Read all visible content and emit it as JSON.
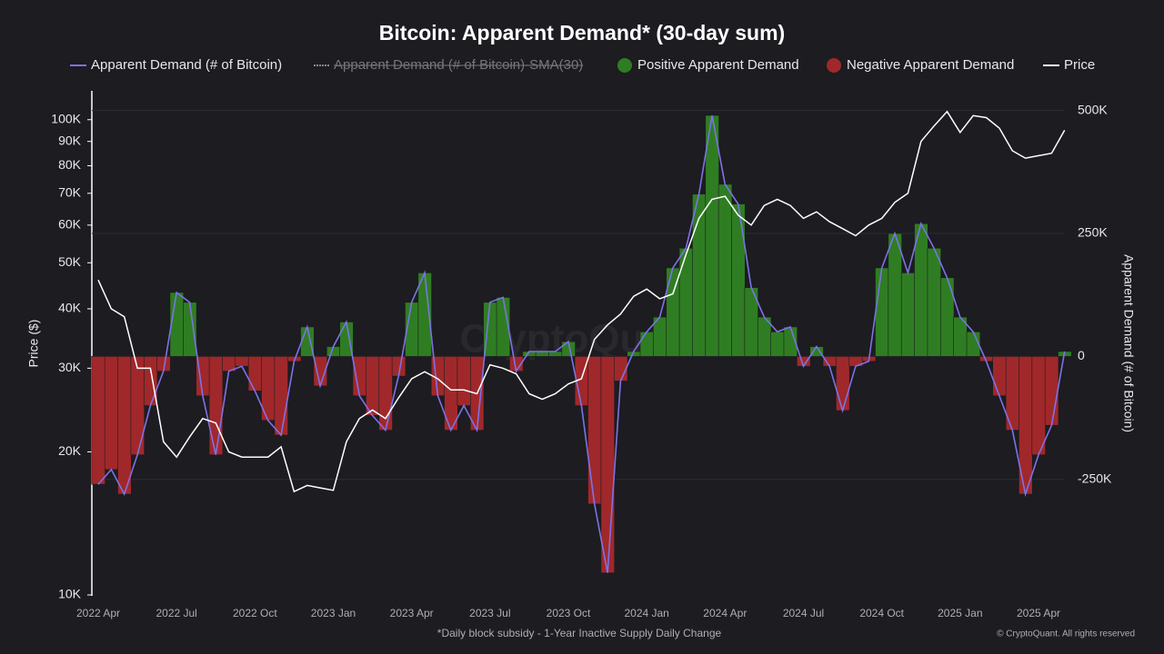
{
  "chart_data": {
    "type": "bar-line",
    "title": "Bitcoin: Apparent Demand* (30-day sum)",
    "footnote": "*Daily block subsidy - 1-Year Inactive Supply Daily Change",
    "copyright": "© CryptoQuant. All rights reserved",
    "watermark": "CryptoQuant",
    "y_label": "Price ($)",
    "y2_label": "Apparent Demand (# of Bitcoin)",
    "y_scale": "log",
    "grid": true,
    "categories": [
      "2022 Apr",
      null,
      null,
      null,
      null,
      null,
      "2022 Jul",
      null,
      null,
      null,
      null,
      null,
      "2022 Oct",
      null,
      null,
      null,
      null,
      null,
      "2023 Jan",
      null,
      null,
      null,
      null,
      null,
      "2023 Apr",
      null,
      null,
      null,
      null,
      null,
      "2023 Jul",
      null,
      null,
      null,
      null,
      null,
      "2023 Oct",
      null,
      null,
      null,
      null,
      null,
      "2024 Jan",
      null,
      null,
      null,
      null,
      null,
      "2024 Apr",
      null,
      null,
      null,
      null,
      null,
      "2024 Jul",
      null,
      null,
      null,
      null,
      null,
      "2024 Oct",
      null,
      null,
      null,
      null,
      null,
      "2025 Jan",
      null,
      null,
      null,
      null,
      null,
      "2025 Apr",
      null,
      null
    ],
    "ylim": [
      10000,
      115000
    ],
    "yticks": [
      {
        "value": 10000,
        "label": "10K"
      },
      {
        "value": 20000,
        "label": "20K"
      },
      {
        "value": 30000,
        "label": "30K"
      },
      {
        "value": 40000,
        "label": "40K"
      },
      {
        "value": 50000,
        "label": "50K"
      },
      {
        "value": 60000,
        "label": "60K"
      },
      {
        "value": 70000,
        "label": "70K"
      },
      {
        "value": 80000,
        "label": "80K"
      },
      {
        "value": 90000,
        "label": "90K"
      },
      {
        "value": 100000,
        "label": "100K"
      }
    ],
    "y2lim": [
      -485000,
      540000
    ],
    "y2ticks": [
      {
        "value": -250000,
        "label": "-250K"
      },
      0,
      {
        "value": 250000,
        "label": "250K"
      },
      {
        "value": 500000,
        "label": "500K"
      }
    ],
    "series": [
      {
        "name": "Apparent Demand (# of Bitcoin)",
        "color": "#7d72e6",
        "axis": "y2",
        "values": [
          -260000,
          -230000,
          -280000,
          -200000,
          -100000,
          -30000,
          130000,
          110000,
          -80000,
          -200000,
          -30000,
          -20000,
          -70000,
          -130000,
          -160000,
          -10000,
          60000,
          -60000,
          20000,
          70000,
          -80000,
          -120000,
          -150000,
          -40000,
          110000,
          170000,
          -80000,
          -150000,
          -100000,
          -150000,
          110000,
          120000,
          -30000,
          10000,
          10000,
          10000,
          30000,
          -100000,
          -300000,
          -440000,
          -50000,
          10000,
          50000,
          80000,
          180000,
          220000,
          330000,
          490000,
          350000,
          310000,
          140000,
          80000,
          50000,
          60000,
          -20000,
          20000,
          -20000,
          -110000,
          -20000,
          -10000,
          180000,
          250000,
          170000,
          270000,
          220000,
          160000,
          80000,
          50000,
          -10000,
          -80000,
          -150000,
          -280000,
          -200000,
          -140000,
          10000
        ]
      },
      {
        "name": "Apparent Demand (# of Bitcoin)-SMA(30)",
        "color": "#888888",
        "axis": "y2",
        "hidden": true
      },
      {
        "name": "Positive Apparent Demand",
        "color": "#2f7d22",
        "axis": "y2",
        "legend_marker": "circle"
      },
      {
        "name": "Negative Apparent Demand",
        "color": "#a0282a",
        "axis": "y2",
        "legend_marker": "circle"
      },
      {
        "name": "Price",
        "color": "#ffffff",
        "axis": "y",
        "values": [
          46000,
          40000,
          38500,
          30000,
          30000,
          21000,
          19500,
          21500,
          23500,
          23000,
          20000,
          19500,
          19500,
          19500,
          20500,
          16500,
          17000,
          16800,
          16600,
          21000,
          23500,
          24500,
          23500,
          26000,
          28500,
          29500,
          28500,
          27000,
          27000,
          26500,
          30500,
          30000,
          29200,
          26500,
          25800,
          26500,
          27800,
          28500,
          34500,
          37000,
          39000,
          42500,
          44000,
          42000,
          43000,
          52000,
          62000,
          68000,
          69000,
          63000,
          60000,
          66000,
          68000,
          66000,
          62000,
          64000,
          61000,
          59000,
          57000,
          60000,
          62000,
          67000,
          70000,
          90000,
          97000,
          104000,
          94000,
          102000,
          101000,
          96000,
          86000,
          83000,
          84000,
          85000,
          95000
        ]
      }
    ]
  }
}
